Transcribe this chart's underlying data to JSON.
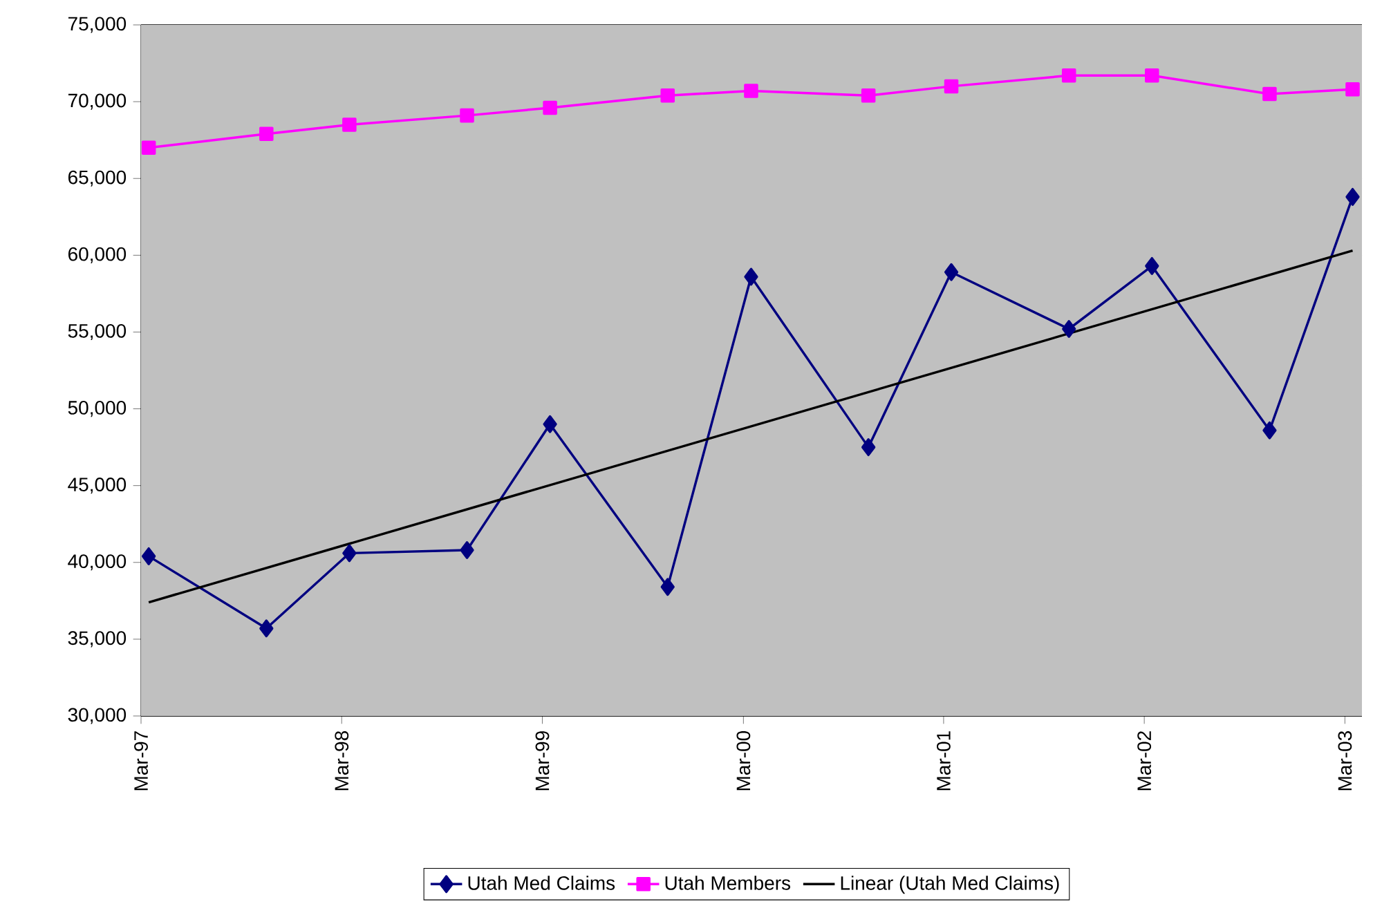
{
  "chart_data": {
    "type": "line",
    "x": [
      "1997-03-15",
      "1997-10-15",
      "1998-03-15",
      "1998-10-15",
      "1999-03-15",
      "1999-10-15",
      "2000-03-15",
      "2000-10-15",
      "2001-03-15",
      "2001-10-15",
      "2002-03-15",
      "2002-10-15",
      "2003-03-15"
    ],
    "series": [
      {
        "name": "Utah Med Claims",
        "color": "#000080",
        "marker": "diamond",
        "values": [
          40400,
          35700,
          40600,
          40800,
          49000,
          38400,
          58600,
          47500,
          58900,
          55200,
          59300,
          48600,
          63800
        ]
      },
      {
        "name": "Utah Members",
        "color": "#ff00ff",
        "marker": "square",
        "values": [
          67000,
          67900,
          68500,
          69100,
          69600,
          70400,
          70700,
          70400,
          71000,
          71700,
          71700,
          70500,
          70800
        ]
      },
      {
        "name": "Linear (Utah Med Claims)",
        "color": "#000000",
        "marker": "none",
        "x": [
          "1997-03-15",
          "2003-03-15"
        ],
        "values": [
          37400,
          60300
        ]
      }
    ],
    "xlim": [
      "1997-03-01",
      "2003-04-01"
    ],
    "xticks": [
      {
        "value": "1997-03-01",
        "label": "Mar-97"
      },
      {
        "value": "1998-03-01",
        "label": "Mar-98"
      },
      {
        "value": "1999-03-01",
        "label": "Mar-99"
      },
      {
        "value": "2000-03-01",
        "label": "Mar-00"
      },
      {
        "value": "2001-03-01",
        "label": "Mar-01"
      },
      {
        "value": "2002-03-01",
        "label": "Mar-02"
      },
      {
        "value": "2003-03-01",
        "label": "Mar-03"
      }
    ],
    "ylim": [
      30000,
      75000
    ],
    "yticks": [
      {
        "value": 30000,
        "label": "30,000"
      },
      {
        "value": 35000,
        "label": "35,000"
      },
      {
        "value": 40000,
        "label": "40,000"
      },
      {
        "value": 45000,
        "label": "45,000"
      },
      {
        "value": 50000,
        "label": "50,000"
      },
      {
        "value": 55000,
        "label": "55,000"
      },
      {
        "value": 60000,
        "label": "60,000"
      },
      {
        "value": 65000,
        "label": "65,000"
      },
      {
        "value": 70000,
        "label": "70,000"
      },
      {
        "value": 75000,
        "label": "75,000"
      }
    ],
    "grid": "y",
    "legend": "bottom",
    "line_style": "solid"
  }
}
